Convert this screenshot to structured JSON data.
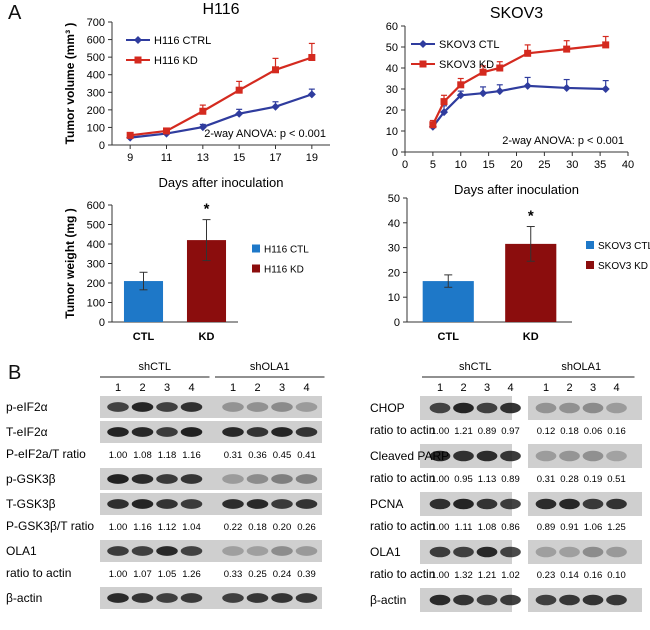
{
  "panel_labels": [
    "A",
    "B"
  ],
  "colors": {
    "ctrl_line": "#2f3c9e",
    "kd_line": "#d42a1f",
    "ctl_bar": "#1e78c8",
    "kd_bar": "#8b0d0d"
  },
  "chart_data": [
    {
      "type": "line",
      "title": "H116",
      "xlabel": "Days after inoculation",
      "ylabel": "Tumor volume (mm³ )",
      "x": [
        9,
        11,
        13,
        15,
        17,
        19
      ],
      "xlim": [
        8,
        20
      ],
      "ylim": [
        0,
        700
      ],
      "xticks": [
        9,
        11,
        13,
        15,
        17,
        19
      ],
      "yticks": [
        0,
        100,
        200,
        300,
        400,
        500,
        600,
        700
      ],
      "annotation": "2-way ANOVA: p < 0.001",
      "legend_position": "top-left",
      "series": [
        {
          "name": "H116 CTRL",
          "values": [
            42,
            65,
            102,
            178,
            218,
            288
          ],
          "err": [
            8,
            10,
            15,
            25,
            28,
            30
          ]
        },
        {
          "name": "H116 KD",
          "values": [
            55,
            80,
            192,
            312,
            428,
            498
          ],
          "err": [
            10,
            12,
            35,
            50,
            65,
            80
          ]
        }
      ]
    },
    {
      "type": "line",
      "title": "SKOV3",
      "xlabel": "Days after inoculation",
      "ylabel": "",
      "x": [
        5,
        7,
        10,
        14,
        17,
        22,
        29,
        36
      ],
      "xlim": [
        0,
        40
      ],
      "ylim": [
        0,
        60
      ],
      "xticks": [
        0,
        5,
        10,
        15,
        20,
        25,
        30,
        35,
        40
      ],
      "yticks": [
        0,
        10,
        20,
        30,
        40,
        50,
        60
      ],
      "annotation": "2-way ANOVA: p < 0.001",
      "legend_position": "top-left",
      "series": [
        {
          "name": "SKOV3 CTL",
          "values": [
            12,
            19,
            27,
            28,
            29,
            31.5,
            30.5,
            30
          ],
          "err": [
            2,
            3,
            2,
            3,
            3,
            4,
            4,
            4
          ]
        },
        {
          "name": "SKOV3  KD",
          "values": [
            13,
            24,
            32,
            38,
            40,
            47,
            49,
            51
          ],
          "err": [
            2,
            3,
            3,
            3,
            3,
            4,
            4,
            4
          ]
        }
      ]
    },
    {
      "type": "bar",
      "categories": [
        "CTL",
        "KD"
      ],
      "values": [
        210,
        420
      ],
      "err": [
        45,
        105
      ],
      "ylabel": "Tumor weight (mg )",
      "ylim": [
        0,
        600
      ],
      "yticks": [
        0,
        100,
        200,
        300,
        400,
        500,
        600
      ],
      "significance": "*",
      "legend": [
        "H116 CTL",
        "H116 KD"
      ],
      "legend_position": "right"
    },
    {
      "type": "bar",
      "categories": [
        "CTL",
        "KD"
      ],
      "values": [
        16.5,
        31.5
      ],
      "err": [
        2.5,
        7
      ],
      "ylabel": "",
      "ylim": [
        0,
        50
      ],
      "yticks": [
        0,
        10,
        20,
        30,
        40,
        50
      ],
      "significance": "*",
      "legend": [
        "SKOV3 CTL",
        "SKOV3 KD"
      ],
      "legend_position": "right"
    }
  ],
  "blots": {
    "left": {
      "groups": [
        "shCTL",
        "shOLA1"
      ],
      "lanes": [
        "1",
        "2",
        "3",
        "4",
        "1",
        "2",
        "3",
        "4"
      ],
      "rows": [
        {
          "label": "p-eIF2α",
          "kind": "band"
        },
        {
          "label": "T-eIF2α",
          "kind": "band"
        },
        {
          "label": "P-eIF2a/T ratio",
          "kind": "ratio",
          "values": [
            "1.00",
            "1.08",
            "1.18",
            "1.16",
            "0.31",
            "0.36",
            "0.45",
            "0.41"
          ]
        },
        {
          "label": "p-GSK3β",
          "kind": "band"
        },
        {
          "label": "T-GSK3β",
          "kind": "band"
        },
        {
          "label": "P-GSK3β/T ratio",
          "kind": "ratio",
          "values": [
            "1.00",
            "1.16",
            "1.12",
            "1.04",
            "0.22",
            "0.18",
            "0.20",
            "0.26"
          ]
        },
        {
          "label": "OLA1",
          "kind": "band"
        },
        {
          "label": "ratio to actin",
          "kind": "ratio",
          "values": [
            "1.00",
            "1.07",
            "1.05",
            "1.26",
            "0.33",
            "0.25",
            "0.24",
            "0.39"
          ]
        },
        {
          "label": "β-actin",
          "kind": "band"
        }
      ]
    },
    "right": {
      "groups": [
        "shCTL",
        "shOLA1"
      ],
      "lanes": [
        "1",
        "2",
        "3",
        "4",
        "1",
        "2",
        "3",
        "4"
      ],
      "rows": [
        {
          "label": "CHOP",
          "kind": "band"
        },
        {
          "label": "ratio to actin",
          "kind": "ratio",
          "values": [
            "1.00",
            "1.21",
            "0.89",
            "0.97",
            "0.12",
            "0.18",
            "0.06",
            "0.16"
          ]
        },
        {
          "label": "Cleaved PARP",
          "kind": "band"
        },
        {
          "label": "ratio to actin",
          "kind": "ratio",
          "values": [
            "1.00",
            "0.95",
            "1.13",
            "0.89",
            "0.31",
            "0.28",
            "0.19",
            "0.51"
          ]
        },
        {
          "label": "PCNA",
          "kind": "band"
        },
        {
          "label": "ratio to actin",
          "kind": "ratio",
          "values": [
            "1.00",
            "1.11",
            "1.08",
            "0.86",
            "0.89",
            "0.91",
            "1.06",
            "1.25"
          ]
        },
        {
          "label": "OLA1",
          "kind": "band"
        },
        {
          "label": "ratio to actin",
          "kind": "ratio",
          "values": [
            "1.00",
            "1.32",
            "1.21",
            "1.02",
            "0.23",
            "0.14",
            "0.16",
            "0.10"
          ]
        },
        {
          "label": "β-actin",
          "kind": "band"
        }
      ]
    }
  }
}
